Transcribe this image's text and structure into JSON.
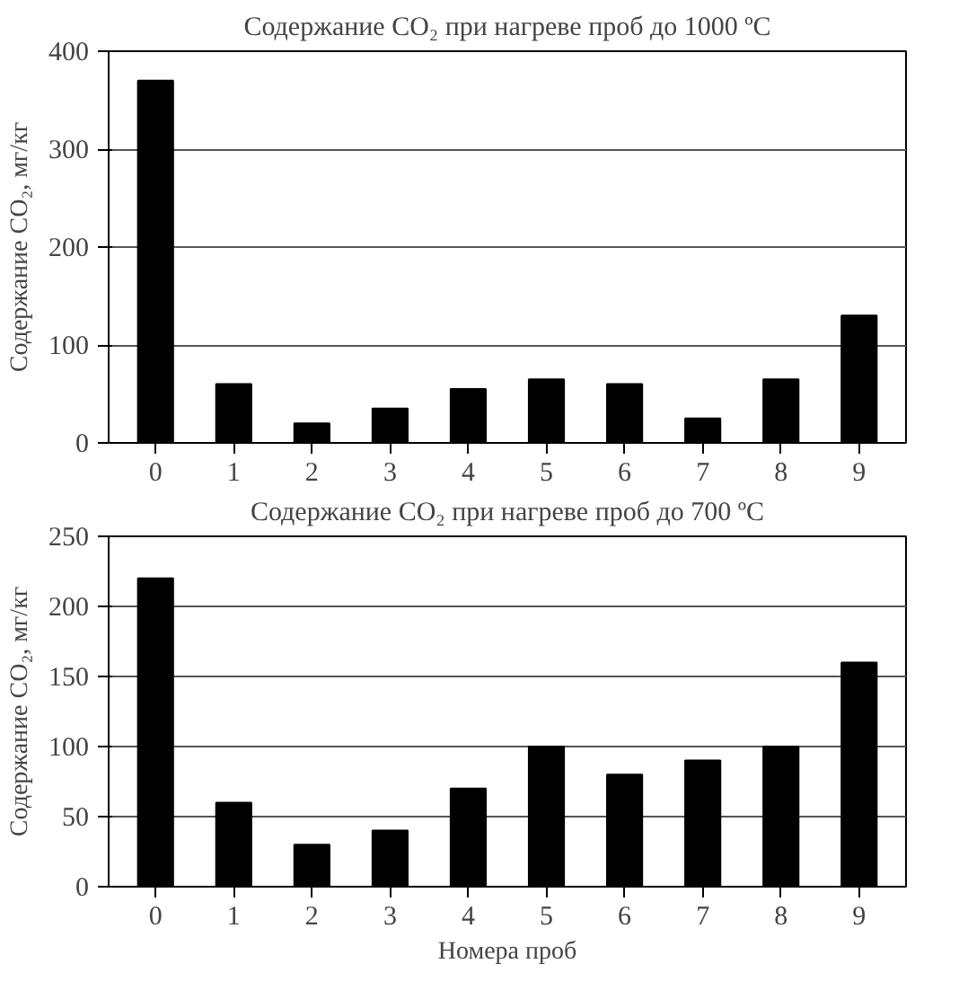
{
  "chart_data": [
    {
      "type": "bar",
      "title": "Содержание CO₂ при нагреве проб до 1000 ºC",
      "ylabel": "Содержание CO₂, мг/кг",
      "categories": [
        "0",
        "1",
        "2",
        "3",
        "4",
        "5",
        "6",
        "7",
        "8",
        "9"
      ],
      "values": [
        370,
        60,
        20,
        35,
        55,
        65,
        60,
        25,
        65,
        130
      ],
      "color": "#000000",
      "ylim": [
        0,
        400
      ],
      "yticks": [
        0,
        100,
        200,
        300,
        400
      ],
      "grid": "y"
    },
    {
      "type": "bar",
      "title": "Содержание CO₂ при нагреве проб до 700 ºC",
      "ylabel": "Содержание CO₂, мг/кг",
      "xlabel": "Номера проб",
      "categories": [
        "0",
        "1",
        "2",
        "3",
        "4",
        "5",
        "6",
        "7",
        "8",
        "9"
      ],
      "values": [
        220,
        60,
        30,
        40,
        70,
        100,
        80,
        90,
        100,
        160
      ],
      "color": "#000000",
      "ylim": [
        0,
        250
      ],
      "yticks": [
        0,
        50,
        100,
        150,
        200,
        250
      ],
      "grid": "y"
    }
  ]
}
